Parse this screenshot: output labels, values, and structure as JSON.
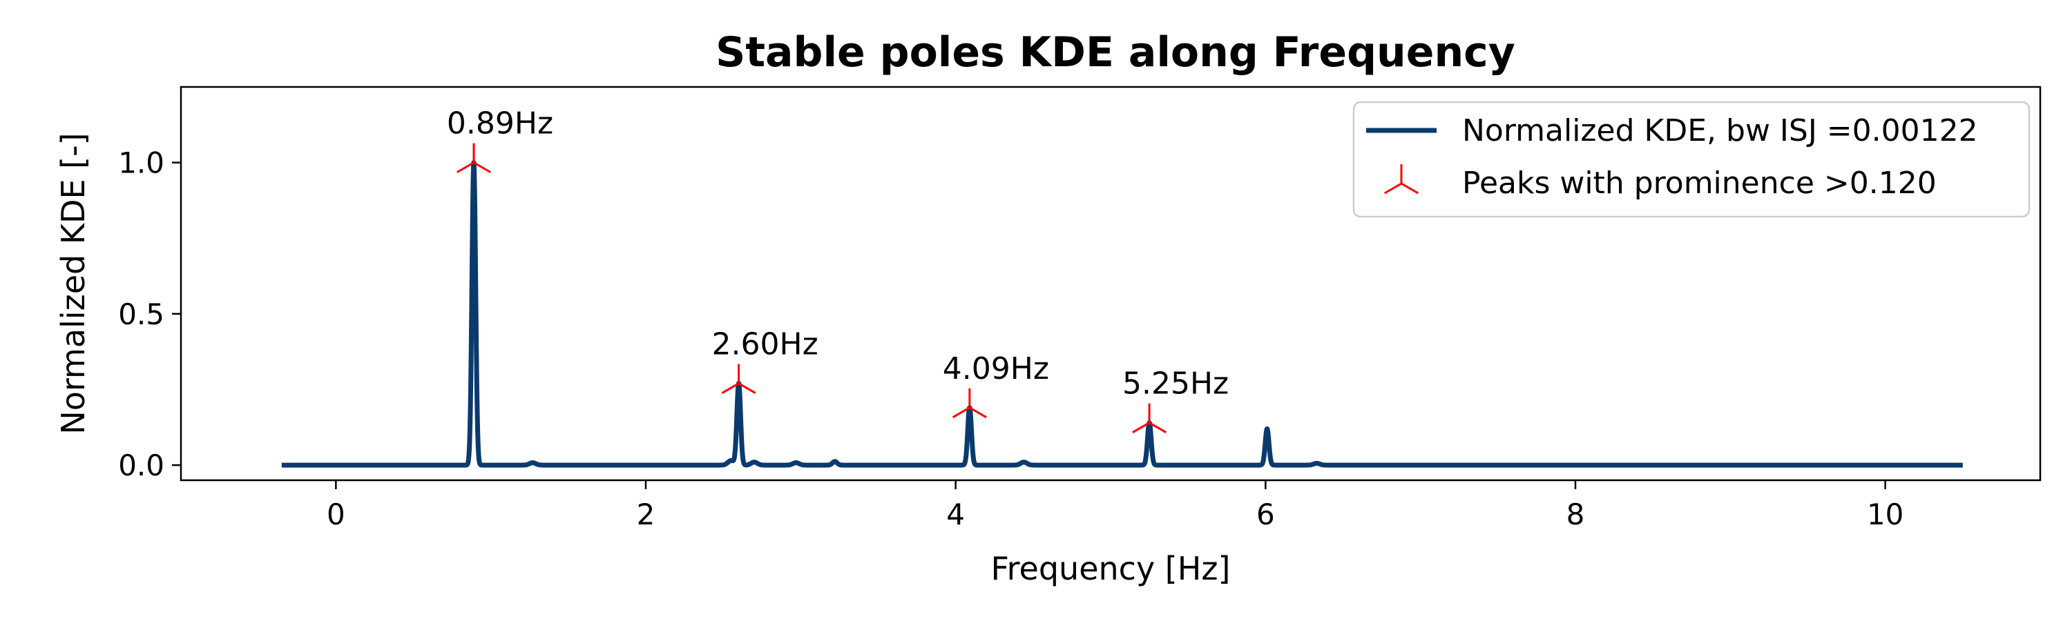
{
  "chart_data": {
    "type": "line",
    "title": "Stable poles KDE along Frequency",
    "xlabel": "Frequency [Hz]",
    "ylabel": "Normalized KDE [-]",
    "xlim": [
      -1.0,
      11.0
    ],
    "ylim": [
      -0.05,
      1.25
    ],
    "xticks": [
      0,
      2,
      4,
      6,
      8,
      10
    ],
    "yticks": [
      0.0,
      0.5,
      1.0
    ],
    "xtick_labels": [
      "0",
      "2",
      "4",
      "6",
      "8",
      "10"
    ],
    "ytick_labels": [
      "0.0",
      "0.5",
      "1.0"
    ],
    "grid": false,
    "legend_position": "top-right",
    "colors": {
      "line": "#0a3a6e",
      "peaks": "#ff0000"
    },
    "series": [
      {
        "name": "Normalized KDE, bw ISJ =0.00122",
        "x_range": [
          -0.35,
          10.5
        ],
        "baseline": 0.0,
        "peaks": [
          {
            "x": 0.89,
            "y": 1.0,
            "width": 0.012
          },
          {
            "x": 1.27,
            "y": 0.008,
            "width": 0.02
          },
          {
            "x": 2.55,
            "y": 0.015,
            "width": 0.02
          },
          {
            "x": 2.6,
            "y": 0.27,
            "width": 0.012
          },
          {
            "x": 2.7,
            "y": 0.01,
            "width": 0.02
          },
          {
            "x": 2.97,
            "y": 0.008,
            "width": 0.02
          },
          {
            "x": 3.22,
            "y": 0.012,
            "width": 0.015
          },
          {
            "x": 4.09,
            "y": 0.19,
            "width": 0.012
          },
          {
            "x": 4.44,
            "y": 0.01,
            "width": 0.02
          },
          {
            "x": 5.25,
            "y": 0.14,
            "width": 0.012
          },
          {
            "x": 6.01,
            "y": 0.12,
            "width": 0.012
          },
          {
            "x": 6.33,
            "y": 0.006,
            "width": 0.02
          }
        ]
      }
    ],
    "peak_markers": {
      "name": "Peaks with prominence >0.120",
      "points": [
        {
          "x": 0.89,
          "y": 1.0,
          "label": "0.89Hz"
        },
        {
          "x": 2.6,
          "y": 0.27,
          "label": "2.60Hz"
        },
        {
          "x": 4.09,
          "y": 0.19,
          "label": "4.09Hz"
        },
        {
          "x": 5.25,
          "y": 0.14,
          "label": "5.25Hz"
        }
      ]
    }
  }
}
